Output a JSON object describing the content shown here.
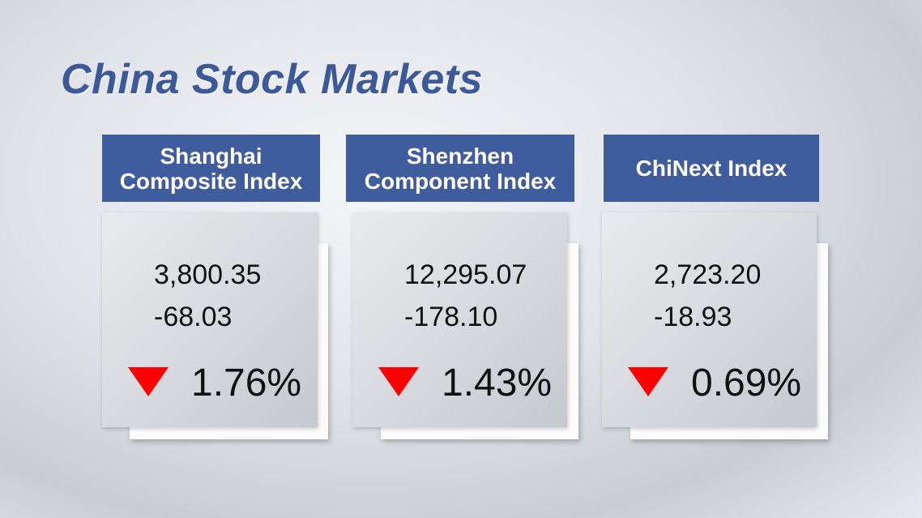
{
  "title": "China Stock Markets",
  "markets": [
    {
      "name_lines": [
        "Shanghai",
        "Composite Index"
      ],
      "value": "3,800.35",
      "change": "-68.03",
      "percent": "1.76%"
    },
    {
      "name_lines": [
        "Shenzhen",
        "Component Index"
      ],
      "value": "12,295.07",
      "change": "-178.10",
      "percent": "1.43%"
    },
    {
      "name_lines": [
        "ChiNext Index"
      ],
      "value": "2,723.20",
      "change": "-18.93",
      "percent": "0.69%"
    }
  ]
}
